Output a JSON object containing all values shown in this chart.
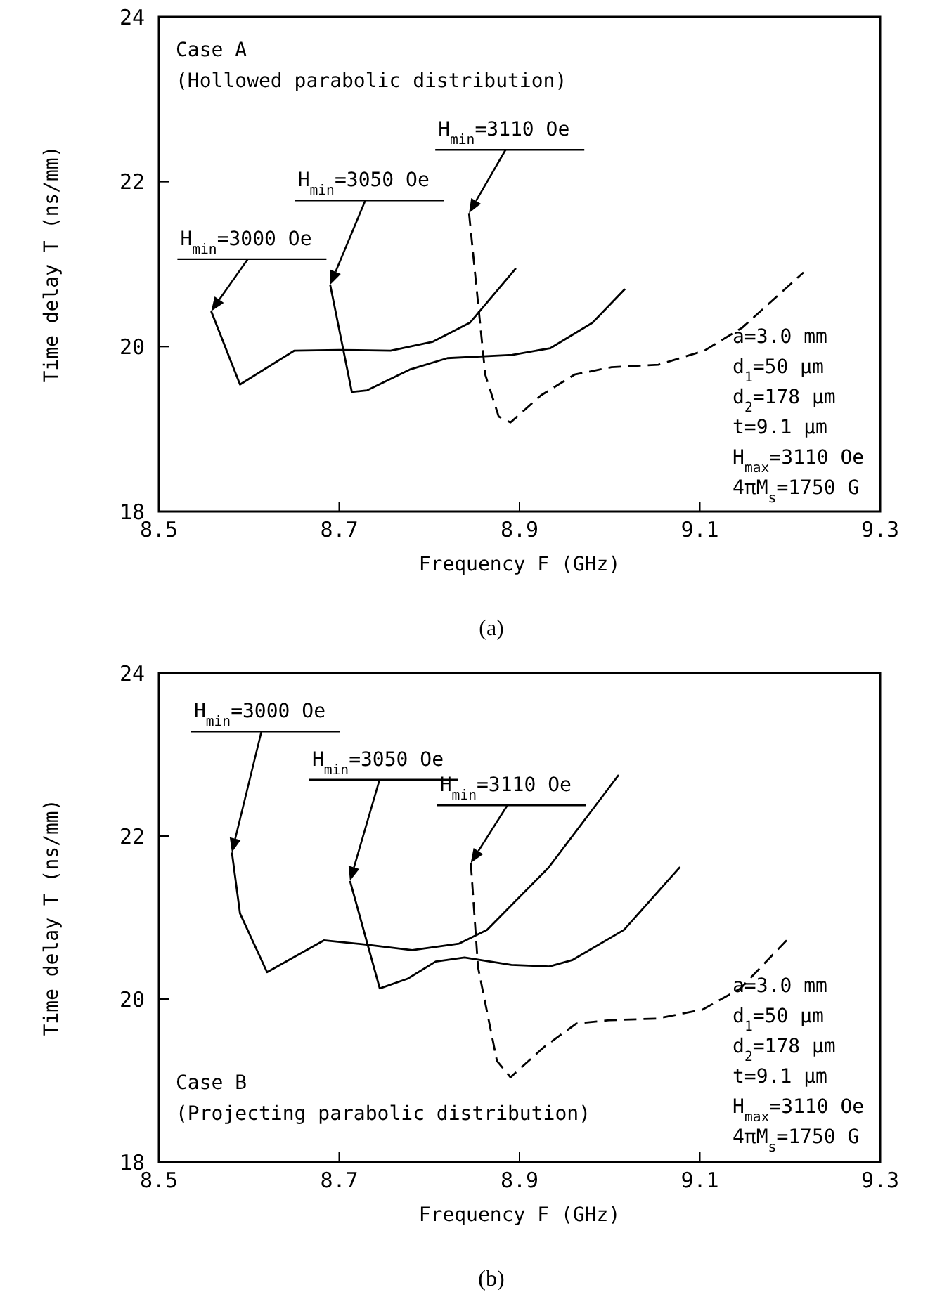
{
  "chart_data": [
    {
      "type": "line",
      "xlabel": "Frequency F (GHz)",
      "ylabel": "Time delay T (ns/mm)",
      "xlim": [
        8.5,
        9.3
      ],
      "xticks": [
        8.5,
        8.7,
        8.9,
        9.1,
        9.3
      ],
      "ylim": [
        18,
        24
      ],
      "yticks": [
        18,
        20,
        22,
        24
      ],
      "grid": false,
      "series": [
        {
          "color": "#000000",
          "line_style": "solid",
          "x": [
            8.558,
            8.59,
            8.65,
            8.7,
            8.757,
            8.804,
            8.845,
            8.896
          ],
          "values": [
            20.43,
            19.54,
            19.95,
            19.96,
            19.95,
            20.06,
            20.29,
            20.95
          ]
        },
        {
          "color": "#000000",
          "line_style": "solid",
          "x": [
            8.69,
            8.714,
            8.731,
            8.778,
            8.82,
            8.892,
            8.934,
            8.981,
            9.017
          ],
          "values": [
            20.75,
            19.45,
            19.47,
            19.72,
            19.86,
            19.9,
            19.98,
            20.29,
            20.7
          ]
        },
        {
          "color": "#000000",
          "line_style": "dashed",
          "x": [
            8.844,
            8.862,
            8.877,
            8.89,
            8.924,
            8.961,
            9.002,
            9.054,
            9.105,
            9.147,
            9.215
          ],
          "values": [
            21.62,
            19.66,
            19.15,
            19.08,
            19.41,
            19.66,
            19.75,
            19.78,
            19.95,
            20.23,
            20.9
          ]
        }
      ],
      "annotations": [
        "H$_{min}$=3000 Oe",
        "H$_{min}$=3050 Oe",
        "H$_{min}$=3110 Oe",
        "Case A",
        "(Hollowed parabolic distribution)",
        "a=3.0 mm",
        "d$_{1}$=50 μm",
        "d$_{2}$=178 μm",
        "t=9.1 μm",
        "H$_{max}$=3110 Oe",
        "4πM$_{s}$=1750 G",
        "(a)"
      ]
    },
    {
      "type": "line",
      "xlabel": "Frequency F (GHz)",
      "ylabel": "Time delay T (ns/mm)",
      "xlim": [
        8.5,
        9.3
      ],
      "xticks": [
        8.5,
        8.7,
        8.9,
        9.1,
        9.3
      ],
      "ylim": [
        18,
        24
      ],
      "yticks": [
        18,
        20,
        22,
        24
      ],
      "grid": false,
      "series": [
        {
          "color": "#000000",
          "line_style": "solid",
          "x": [
            8.581,
            8.59,
            8.62,
            8.683,
            8.729,
            8.781,
            8.833,
            8.864,
            8.932,
            9.01
          ],
          "values": [
            21.8,
            21.05,
            20.33,
            20.72,
            20.67,
            20.6,
            20.68,
            20.85,
            21.61,
            22.75
          ]
        },
        {
          "color": "#000000",
          "line_style": "solid",
          "x": [
            8.712,
            8.745,
            8.776,
            8.807,
            8.839,
            8.891,
            8.933,
            8.959,
            9.016,
            9.078
          ],
          "values": [
            21.45,
            20.13,
            20.25,
            20.46,
            20.51,
            20.42,
            20.4,
            20.48,
            20.85,
            21.62
          ]
        },
        {
          "color": "#000000",
          "line_style": "dashed",
          "x": [
            8.846,
            8.854,
            8.875,
            8.89,
            8.927,
            8.963,
            8.999,
            9.052,
            9.103,
            9.145,
            9.198
          ],
          "values": [
            21.67,
            20.39,
            19.24,
            19.04,
            19.41,
            19.7,
            19.74,
            19.76,
            19.87,
            20.13,
            20.74
          ]
        }
      ],
      "annotations": [
        "H$_{min}$=3000 Oe",
        "H$_{min}$=3050 Oe",
        "H$_{min}$=3110 Oe",
        "Case B",
        "(Projecting parabolic distribution)",
        "a=3.0 mm",
        "d$_{1}$=50 μm",
        "d$_{2}$=178 μm",
        "t=9.1 μm",
        "H$_{max}$=3110 Oe",
        "4πM$_{s}$=1750 G",
        "(b)"
      ]
    }
  ]
}
